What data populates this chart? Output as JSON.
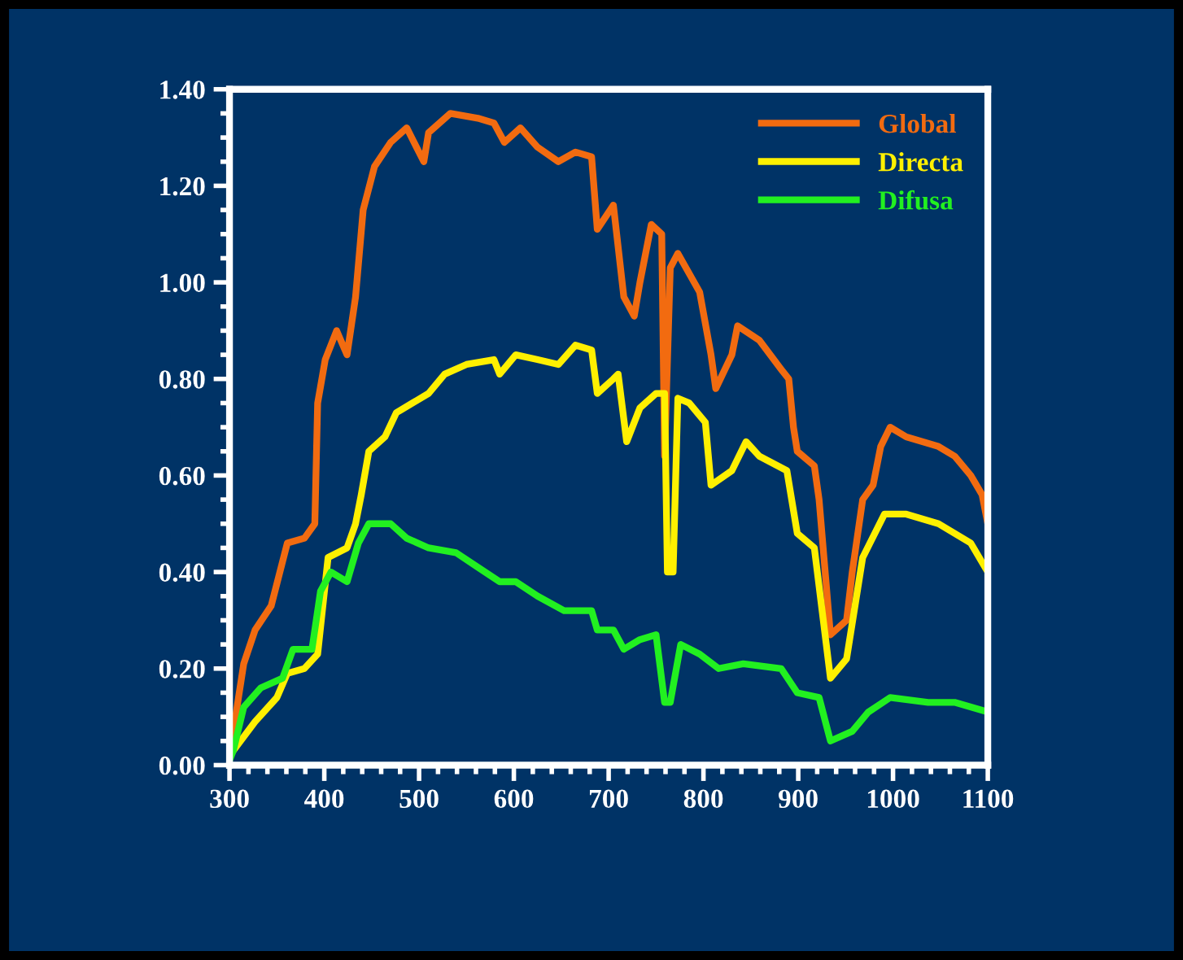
{
  "chart_data": {
    "type": "line",
    "xlim": [
      300,
      1100
    ],
    "ylim": [
      0,
      1.4
    ],
    "xticks": [
      300,
      400,
      500,
      600,
      700,
      800,
      900,
      1000,
      1100
    ],
    "yticks": [
      {
        "value": 0,
        "label": "0.00"
      },
      {
        "value": 0.2,
        "label": "0.20"
      },
      {
        "value": 0.4,
        "label": "0.40"
      },
      {
        "value": 0.6,
        "label": "0.60"
      },
      {
        "value": 0.8,
        "label": "0.80"
      },
      {
        "value": 1.0,
        "label": "1.00"
      },
      {
        "value": 1.2,
        "label": "1.20"
      },
      {
        "value": 1.4,
        "label": "1.40"
      }
    ],
    "grid": false,
    "legend": "top right",
    "marker": "none",
    "line_style": "solid",
    "series": [
      {
        "name": "Global",
        "color": "#f26b10",
        "x": [
          300,
          304,
          315,
          327,
          344,
          361,
          379,
          390,
          393,
          401,
          413,
          424,
          433,
          441,
          453,
          470,
          487,
          505,
          510,
          533,
          562,
          579,
          590,
          607,
          625,
          647,
          665,
          682,
          688,
          705,
          716,
          727,
          733,
          745,
          756,
          759,
          765,
          773,
          796,
          808,
          813,
          830,
          836,
          859,
          882,
          890,
          895,
          899,
          917,
          922,
          934,
          951,
          957,
          968,
          979,
          987,
          997,
          1014,
          1048,
          1065,
          1082,
          1094,
          1100
        ],
        "values": [
          0.03,
          0.07,
          0.21,
          0.28,
          0.33,
          0.46,
          0.47,
          0.5,
          0.75,
          0.84,
          0.9,
          0.85,
          0.97,
          1.15,
          1.24,
          1.29,
          1.32,
          1.25,
          1.31,
          1.35,
          1.34,
          1.33,
          1.29,
          1.32,
          1.28,
          1.25,
          1.27,
          1.26,
          1.11,
          1.16,
          0.97,
          0.93,
          1.0,
          1.12,
          1.1,
          0.64,
          1.03,
          1.06,
          0.98,
          0.85,
          0.78,
          0.85,
          0.91,
          0.88,
          0.82,
          0.8,
          0.7,
          0.65,
          0.62,
          0.55,
          0.27,
          0.3,
          0.4,
          0.55,
          0.58,
          0.66,
          0.7,
          0.68,
          0.66,
          0.64,
          0.6,
          0.56,
          0.5
        ]
      },
      {
        "name": "Directa",
        "color": "#fff000",
        "x": [
          304,
          327,
          350,
          361,
          379,
          393,
          404,
          424,
          433,
          439,
          447,
          464,
          476,
          493,
          510,
          527,
          550,
          579,
          585,
          602,
          625,
          647,
          665,
          682,
          688,
          705,
          710,
          719,
          733,
          750,
          759,
          762,
          768,
          773,
          785,
          802,
          808,
          830,
          845,
          859,
          888,
          899,
          917,
          934,
          951,
          968,
          991,
          1014,
          1048,
          1082,
          1100
        ],
        "values": [
          0.03,
          0.09,
          0.14,
          0.19,
          0.2,
          0.23,
          0.43,
          0.45,
          0.5,
          0.56,
          0.65,
          0.68,
          0.73,
          0.75,
          0.77,
          0.81,
          0.83,
          0.84,
          0.81,
          0.85,
          0.84,
          0.83,
          0.87,
          0.86,
          0.77,
          0.8,
          0.81,
          0.67,
          0.74,
          0.77,
          0.77,
          0.4,
          0.4,
          0.76,
          0.75,
          0.71,
          0.58,
          0.61,
          0.67,
          0.64,
          0.61,
          0.48,
          0.45,
          0.18,
          0.22,
          0.43,
          0.52,
          0.52,
          0.5,
          0.46,
          0.4
        ]
      },
      {
        "name": "Difusa",
        "color": "#22f020",
        "x": [
          300,
          304,
          315,
          333,
          356,
          367,
          387,
          396,
          407,
          424,
          436,
          447,
          470,
          487,
          510,
          539,
          562,
          585,
          602,
          625,
          653,
          682,
          688,
          705,
          716,
          733,
          750,
          759,
          765,
          776,
          796,
          816,
          842,
          882,
          899,
          922,
          934,
          957,
          974,
          997,
          1037,
          1065,
          1100
        ],
        "values": [
          0.01,
          0.03,
          0.12,
          0.16,
          0.18,
          0.24,
          0.24,
          0.36,
          0.4,
          0.38,
          0.46,
          0.5,
          0.5,
          0.47,
          0.45,
          0.44,
          0.41,
          0.38,
          0.38,
          0.35,
          0.32,
          0.32,
          0.28,
          0.28,
          0.24,
          0.26,
          0.27,
          0.13,
          0.13,
          0.25,
          0.23,
          0.2,
          0.21,
          0.2,
          0.15,
          0.14,
          0.05,
          0.07,
          0.11,
          0.14,
          0.13,
          0.13,
          0.11
        ]
      }
    ]
  }
}
